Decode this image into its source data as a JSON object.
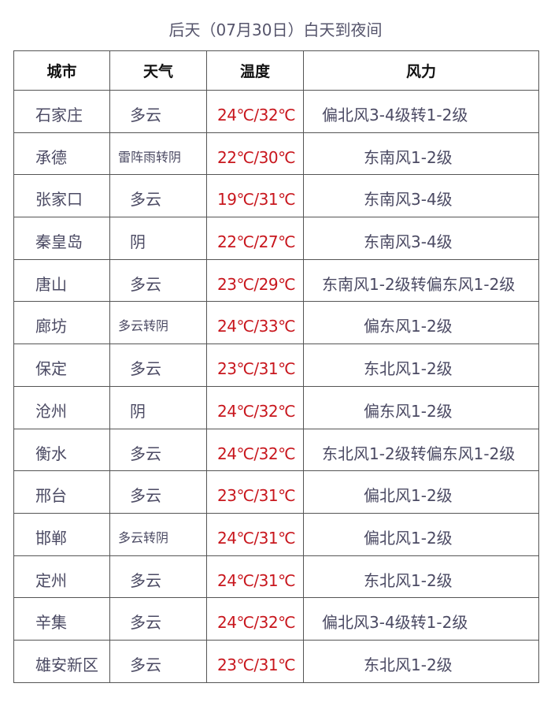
{
  "title": "后天（07月30日）白天到夜间",
  "headers": [
    "城市",
    "天气",
    "温度",
    "风力"
  ],
  "rows": [
    {
      "city": "石家庄",
      "weather": "多云",
      "temp": "24℃/32℃",
      "wind": "偏北风3-4级转1-2级"
    },
    {
      "city": "承德",
      "weather": "雷阵雨转阴",
      "temp": "22℃/30℃",
      "wind": "东南风1-2级"
    },
    {
      "city": "张家口",
      "weather": "多云",
      "temp": "19℃/31℃",
      "wind": "东南风3-4级"
    },
    {
      "city": "秦皇岛",
      "weather": "阴",
      "temp": "22℃/27℃",
      "wind": "东南风3-4级"
    },
    {
      "city": "唐山",
      "weather": "多云",
      "temp": "23℃/29℃",
      "wind": "东南风1-2级转偏东风1-2级"
    },
    {
      "city": "廊坊",
      "weather": "多云转阴",
      "temp": "24℃/33℃",
      "wind": "偏东风1-2级"
    },
    {
      "city": "保定",
      "weather": "多云",
      "temp": "23℃/31℃",
      "wind": "东北风1-2级"
    },
    {
      "city": "沧州",
      "weather": "阴",
      "temp": "24℃/32℃",
      "wind": "偏东风1-2级"
    },
    {
      "city": "衡水",
      "weather": "多云",
      "temp": "24℃/32℃",
      "wind": "东北风1-2级转偏东风1-2级"
    },
    {
      "city": "邢台",
      "weather": "多云",
      "temp": "23℃/31℃",
      "wind": "偏北风1-2级"
    },
    {
      "city": "邯郸",
      "weather": "多云转阴",
      "temp": "24℃/31℃",
      "wind": "偏北风1-2级"
    },
    {
      "city": "定州",
      "weather": "多云",
      "temp": "24℃/31℃",
      "wind": "东北风1-2级"
    },
    {
      "city": "辛集",
      "weather": "多云",
      "temp": "24℃/32℃",
      "wind": "偏北风3-4级转1-2级"
    },
    {
      "city": "雄安新区",
      "weather": "多云",
      "temp": "23℃/31℃",
      "wind": "东北风1-2级"
    }
  ],
  "colors": {
    "temperature": "#c8161d",
    "text": "#4b4a63",
    "header": "#111111"
  }
}
